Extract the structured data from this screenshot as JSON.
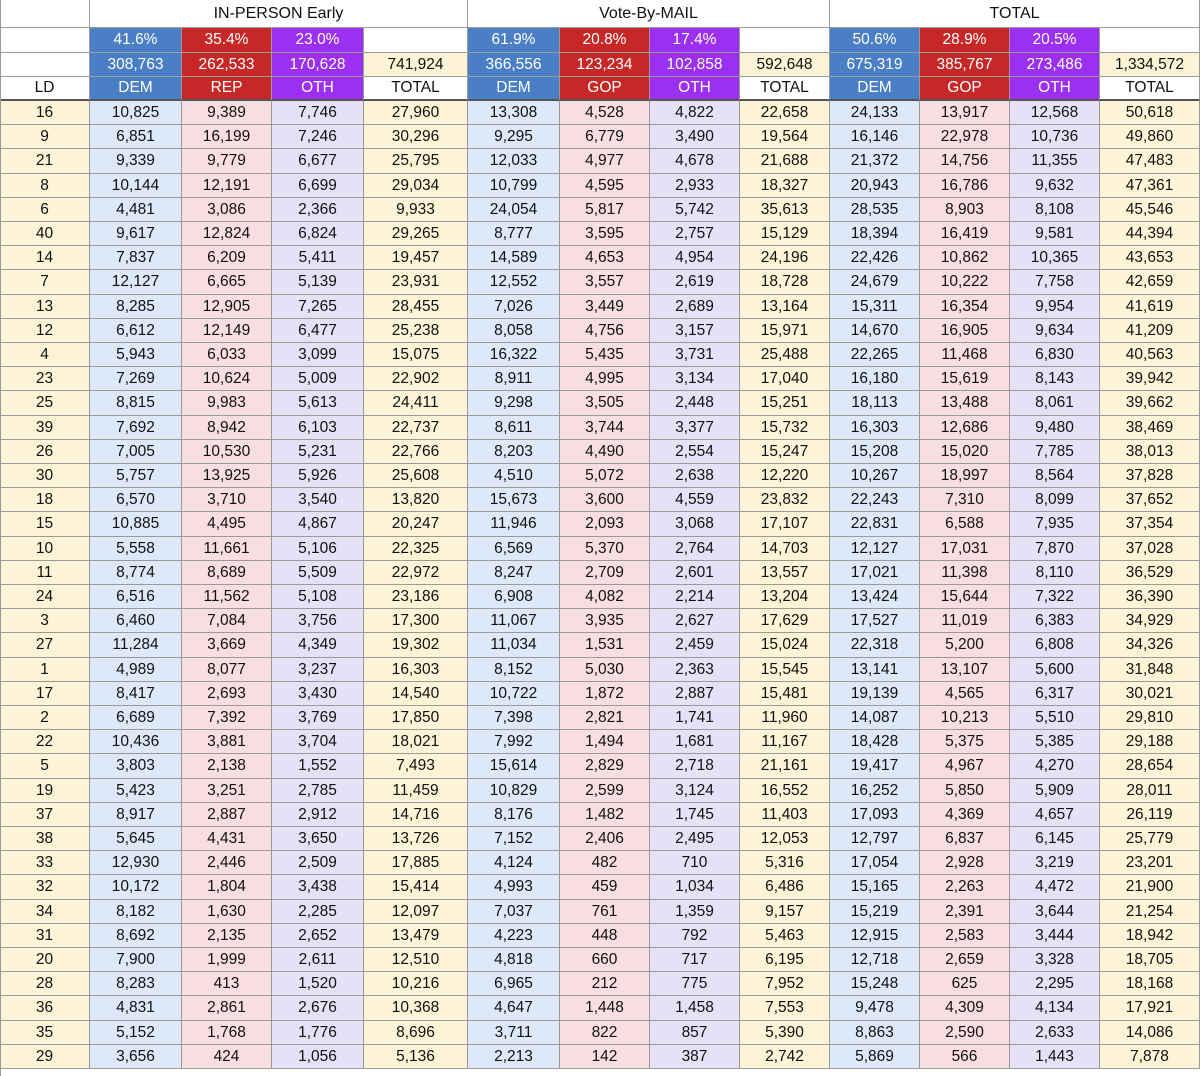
{
  "sections": [
    {
      "label": "IN-PERSON Early"
    },
    {
      "label": "Vote-By-MAIL"
    },
    {
      "label": "TOTAL"
    }
  ],
  "pct_row": [
    "41.6%",
    "35.4%",
    "23.0%",
    "",
    "61.9%",
    "20.8%",
    "17.4%",
    "",
    "50.6%",
    "28.9%",
    "20.5%",
    ""
  ],
  "sum_row": [
    "308,763",
    "262,533",
    "170,628",
    "741,924",
    "366,556",
    "123,234",
    "102,858",
    "592,648",
    "675,319",
    "385,767",
    "273,486",
    "1,334,572"
  ],
  "col_headers": [
    "LD",
    "DEM",
    "REP",
    "OTH",
    "TOTAL",
    "DEM",
    "GOP",
    "OTH",
    "TOTAL",
    "DEM",
    "GOP",
    "OTH",
    "TOTAL"
  ],
  "colors": {
    "dem_header": "#4a7fc6",
    "rep_header": "#c62828",
    "oth_header": "#9b30f0",
    "ld_bg": "#fdf3d6",
    "dem_bg": "#dde9f8",
    "rep_bg": "#f8dde1",
    "oth_bg": "#e6e1f6",
    "total_bg": "#fdf3d6",
    "grid": "#9a9a9a"
  },
  "rows": [
    [
      "16",
      "10,825",
      "9,389",
      "7,746",
      "27,960",
      "13,308",
      "4,528",
      "4,822",
      "22,658",
      "24,133",
      "13,917",
      "12,568",
      "50,618"
    ],
    [
      "9",
      "6,851",
      "16,199",
      "7,246",
      "30,296",
      "9,295",
      "6,779",
      "3,490",
      "19,564",
      "16,146",
      "22,978",
      "10,736",
      "49,860"
    ],
    [
      "21",
      "9,339",
      "9,779",
      "6,677",
      "25,795",
      "12,033",
      "4,977",
      "4,678",
      "21,688",
      "21,372",
      "14,756",
      "11,355",
      "47,483"
    ],
    [
      "8",
      "10,144",
      "12,191",
      "6,699",
      "29,034",
      "10,799",
      "4,595",
      "2,933",
      "18,327",
      "20,943",
      "16,786",
      "9,632",
      "47,361"
    ],
    [
      "6",
      "4,481",
      "3,086",
      "2,366",
      "9,933",
      "24,054",
      "5,817",
      "5,742",
      "35,613",
      "28,535",
      "8,903",
      "8,108",
      "45,546"
    ],
    [
      "40",
      "9,617",
      "12,824",
      "6,824",
      "29,265",
      "8,777",
      "3,595",
      "2,757",
      "15,129",
      "18,394",
      "16,419",
      "9,581",
      "44,394"
    ],
    [
      "14",
      "7,837",
      "6,209",
      "5,411",
      "19,457",
      "14,589",
      "4,653",
      "4,954",
      "24,196",
      "22,426",
      "10,862",
      "10,365",
      "43,653"
    ],
    [
      "7",
      "12,127",
      "6,665",
      "5,139",
      "23,931",
      "12,552",
      "3,557",
      "2,619",
      "18,728",
      "24,679",
      "10,222",
      "7,758",
      "42,659"
    ],
    [
      "13",
      "8,285",
      "12,905",
      "7,265",
      "28,455",
      "7,026",
      "3,449",
      "2,689",
      "13,164",
      "15,311",
      "16,354",
      "9,954",
      "41,619"
    ],
    [
      "12",
      "6,612",
      "12,149",
      "6,477",
      "25,238",
      "8,058",
      "4,756",
      "3,157",
      "15,971",
      "14,670",
      "16,905",
      "9,634",
      "41,209"
    ],
    [
      "4",
      "5,943",
      "6,033",
      "3,099",
      "15,075",
      "16,322",
      "5,435",
      "3,731",
      "25,488",
      "22,265",
      "11,468",
      "6,830",
      "40,563"
    ],
    [
      "23",
      "7,269",
      "10,624",
      "5,009",
      "22,902",
      "8,911",
      "4,995",
      "3,134",
      "17,040",
      "16,180",
      "15,619",
      "8,143",
      "39,942"
    ],
    [
      "25",
      "8,815",
      "9,983",
      "5,613",
      "24,411",
      "9,298",
      "3,505",
      "2,448",
      "15,251",
      "18,113",
      "13,488",
      "8,061",
      "39,662"
    ],
    [
      "39",
      "7,692",
      "8,942",
      "6,103",
      "22,737",
      "8,611",
      "3,744",
      "3,377",
      "15,732",
      "16,303",
      "12,686",
      "9,480",
      "38,469"
    ],
    [
      "26",
      "7,005",
      "10,530",
      "5,231",
      "22,766",
      "8,203",
      "4,490",
      "2,554",
      "15,247",
      "15,208",
      "15,020",
      "7,785",
      "38,013"
    ],
    [
      "30",
      "5,757",
      "13,925",
      "5,926",
      "25,608",
      "4,510",
      "5,072",
      "2,638",
      "12,220",
      "10,267",
      "18,997",
      "8,564",
      "37,828"
    ],
    [
      "18",
      "6,570",
      "3,710",
      "3,540",
      "13,820",
      "15,673",
      "3,600",
      "4,559",
      "23,832",
      "22,243",
      "7,310",
      "8,099",
      "37,652"
    ],
    [
      "15",
      "10,885",
      "4,495",
      "4,867",
      "20,247",
      "11,946",
      "2,093",
      "3,068",
      "17,107",
      "22,831",
      "6,588",
      "7,935",
      "37,354"
    ],
    [
      "10",
      "5,558",
      "11,661",
      "5,106",
      "22,325",
      "6,569",
      "5,370",
      "2,764",
      "14,703",
      "12,127",
      "17,031",
      "7,870",
      "37,028"
    ],
    [
      "11",
      "8,774",
      "8,689",
      "5,509",
      "22,972",
      "8,247",
      "2,709",
      "2,601",
      "13,557",
      "17,021",
      "11,398",
      "8,110",
      "36,529"
    ],
    [
      "24",
      "6,516",
      "11,562",
      "5,108",
      "23,186",
      "6,908",
      "4,082",
      "2,214",
      "13,204",
      "13,424",
      "15,644",
      "7,322",
      "36,390"
    ],
    [
      "3",
      "6,460",
      "7,084",
      "3,756",
      "17,300",
      "11,067",
      "3,935",
      "2,627",
      "17,629",
      "17,527",
      "11,019",
      "6,383",
      "34,929"
    ],
    [
      "27",
      "11,284",
      "3,669",
      "4,349",
      "19,302",
      "11,034",
      "1,531",
      "2,459",
      "15,024",
      "22,318",
      "5,200",
      "6,808",
      "34,326"
    ],
    [
      "1",
      "4,989",
      "8,077",
      "3,237",
      "16,303",
      "8,152",
      "5,030",
      "2,363",
      "15,545",
      "13,141",
      "13,107",
      "5,600",
      "31,848"
    ],
    [
      "17",
      "8,417",
      "2,693",
      "3,430",
      "14,540",
      "10,722",
      "1,872",
      "2,887",
      "15,481",
      "19,139",
      "4,565",
      "6,317",
      "30,021"
    ],
    [
      "2",
      "6,689",
      "7,392",
      "3,769",
      "17,850",
      "7,398",
      "2,821",
      "1,741",
      "11,960",
      "14,087",
      "10,213",
      "5,510",
      "29,810"
    ],
    [
      "22",
      "10,436",
      "3,881",
      "3,704",
      "18,021",
      "7,992",
      "1,494",
      "1,681",
      "11,167",
      "18,428",
      "5,375",
      "5,385",
      "29,188"
    ],
    [
      "5",
      "3,803",
      "2,138",
      "1,552",
      "7,493",
      "15,614",
      "2,829",
      "2,718",
      "21,161",
      "19,417",
      "4,967",
      "4,270",
      "28,654"
    ],
    [
      "19",
      "5,423",
      "3,251",
      "2,785",
      "11,459",
      "10,829",
      "2,599",
      "3,124",
      "16,552",
      "16,252",
      "5,850",
      "5,909",
      "28,011"
    ],
    [
      "37",
      "8,917",
      "2,887",
      "2,912",
      "14,716",
      "8,176",
      "1,482",
      "1,745",
      "11,403",
      "17,093",
      "4,369",
      "4,657",
      "26,119"
    ],
    [
      "38",
      "5,645",
      "4,431",
      "3,650",
      "13,726",
      "7,152",
      "2,406",
      "2,495",
      "12,053",
      "12,797",
      "6,837",
      "6,145",
      "25,779"
    ],
    [
      "33",
      "12,930",
      "2,446",
      "2,509",
      "17,885",
      "4,124",
      "482",
      "710",
      "5,316",
      "17,054",
      "2,928",
      "3,219",
      "23,201"
    ],
    [
      "32",
      "10,172",
      "1,804",
      "3,438",
      "15,414",
      "4,993",
      "459",
      "1,034",
      "6,486",
      "15,165",
      "2,263",
      "4,472",
      "21,900"
    ],
    [
      "34",
      "8,182",
      "1,630",
      "2,285",
      "12,097",
      "7,037",
      "761",
      "1,359",
      "9,157",
      "15,219",
      "2,391",
      "3,644",
      "21,254"
    ],
    [
      "31",
      "8,692",
      "2,135",
      "2,652",
      "13,479",
      "4,223",
      "448",
      "792",
      "5,463",
      "12,915",
      "2,583",
      "3,444",
      "18,942"
    ],
    [
      "20",
      "7,900",
      "1,999",
      "2,611",
      "12,510",
      "4,818",
      "660",
      "717",
      "6,195",
      "12,718",
      "2,659",
      "3,328",
      "18,705"
    ],
    [
      "28",
      "8,283",
      "413",
      "1,520",
      "10,216",
      "6,965",
      "212",
      "775",
      "7,952",
      "15,248",
      "625",
      "2,295",
      "18,168"
    ],
    [
      "36",
      "4,831",
      "2,861",
      "2,676",
      "10,368",
      "4,647",
      "1,448",
      "1,458",
      "7,553",
      "9,478",
      "4,309",
      "4,134",
      "17,921"
    ],
    [
      "35",
      "5,152",
      "1,768",
      "1,776",
      "8,696",
      "3,711",
      "822",
      "857",
      "5,390",
      "8,863",
      "2,590",
      "2,633",
      "14,086"
    ],
    [
      "29",
      "3,656",
      "424",
      "1,056",
      "5,136",
      "2,213",
      "142",
      "387",
      "2,742",
      "5,869",
      "566",
      "1,443",
      "7,878"
    ]
  ]
}
